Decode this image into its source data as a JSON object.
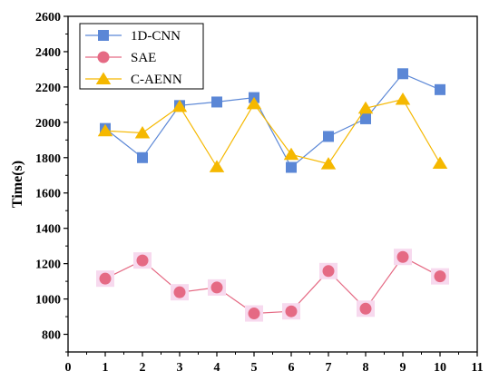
{
  "chart_data": {
    "type": "line",
    "xlabel": "",
    "ylabel": "Time(s)",
    "xlim": [
      0,
      11
    ],
    "ylim": [
      700,
      2600
    ],
    "x_ticks": [
      0,
      1,
      2,
      3,
      4,
      5,
      6,
      7,
      8,
      9,
      10,
      11
    ],
    "y_ticks": [
      800,
      1000,
      1200,
      1400,
      1600,
      1800,
      2000,
      2200,
      2400,
      2600
    ],
    "grid": false,
    "legend_position": "top-left",
    "x": [
      1,
      2,
      3,
      4,
      5,
      6,
      7,
      8,
      9,
      10
    ],
    "series": [
      {
        "name": "1D-CNN",
        "marker": "square",
        "color": "#5b87d6",
        "values": [
          1965,
          1800,
          2095,
          2115,
          2140,
          1745,
          1920,
          2020,
          2275,
          2185
        ]
      },
      {
        "name": "SAE",
        "marker": "circle",
        "color": "#e56a84",
        "values": [
          1115,
          1218,
          1038,
          1065,
          918,
          930,
          1158,
          945,
          1238,
          1128
        ]
      },
      {
        "name": "C-AENN",
        "marker": "triangle",
        "color": "#f5b800",
        "values": [
          1952,
          1940,
          2090,
          1748,
          2105,
          1818,
          1765,
          2080,
          2130,
          1768
        ]
      }
    ]
  }
}
